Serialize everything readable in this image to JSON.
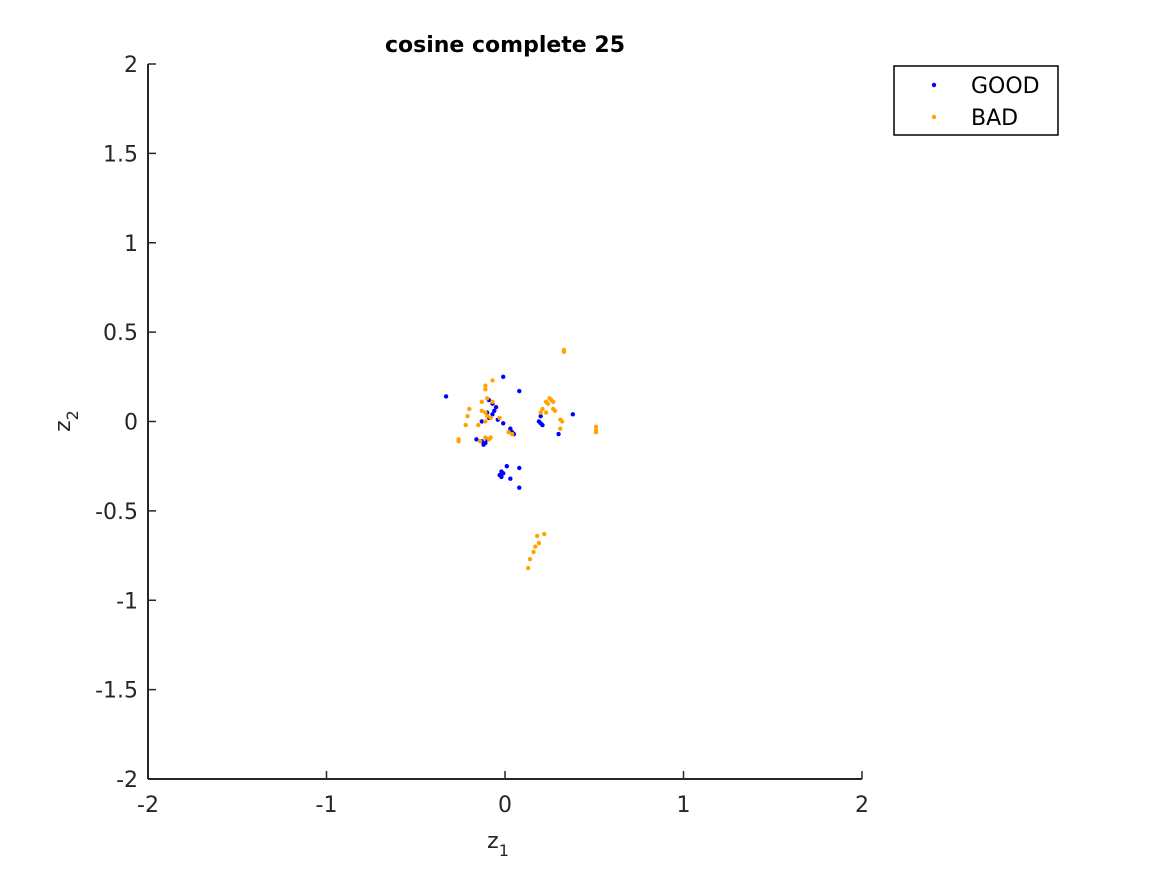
{
  "chart_data": {
    "type": "scatter",
    "title": "cosine complete 25",
    "xlabel": {
      "base": "z",
      "sub": "1"
    },
    "ylabel": {
      "base": "z",
      "sub": "2"
    },
    "xlim": [
      -2,
      2
    ],
    "ylim": [
      -2,
      2
    ],
    "xticks": [
      -2,
      -1,
      0,
      1,
      2
    ],
    "yticks": [
      -2,
      -1.5,
      -1,
      -0.5,
      0,
      0.5,
      1,
      1.5,
      2
    ],
    "grid": false,
    "legend_position": "top-right",
    "series": [
      {
        "name": "GOOD",
        "color": "#0000ff",
        "points": [
          [
            -0.33,
            0.14
          ],
          [
            -0.01,
            0.25
          ],
          [
            0.08,
            0.17
          ],
          [
            -0.09,
            0.12
          ],
          [
            -0.07,
            0.1
          ],
          [
            -0.05,
            0.08
          ],
          [
            -0.06,
            0.06
          ],
          [
            -0.1,
            0.05
          ],
          [
            -0.07,
            0.04
          ],
          [
            -0.09,
            0.02
          ],
          [
            -0.04,
            0.01
          ],
          [
            -0.01,
            -0.01
          ],
          [
            -0.13,
            0.0
          ],
          [
            0.03,
            -0.04
          ],
          [
            0.04,
            -0.06
          ],
          [
            0.05,
            -0.07
          ],
          [
            0.03,
            -0.05
          ],
          [
            0.19,
            0.0
          ],
          [
            0.2,
            -0.01
          ],
          [
            0.21,
            -0.02
          ],
          [
            0.2,
            0.03
          ],
          [
            0.38,
            0.04
          ],
          [
            0.3,
            -0.07
          ],
          [
            -0.16,
            -0.1
          ],
          [
            -0.13,
            -0.11
          ],
          [
            -0.11,
            -0.12
          ],
          [
            -0.12,
            -0.13
          ],
          [
            -0.1,
            -0.1
          ],
          [
            0.01,
            -0.25
          ],
          [
            0.08,
            -0.26
          ],
          [
            -0.02,
            -0.28
          ],
          [
            -0.01,
            -0.29
          ],
          [
            -0.03,
            -0.3
          ],
          [
            -0.02,
            -0.31
          ],
          [
            0.03,
            -0.32
          ],
          [
            0.08,
            -0.37
          ]
        ]
      },
      {
        "name": "BAD",
        "color": "#ffa500",
        "points": [
          [
            0.33,
            0.4
          ],
          [
            0.33,
            0.39
          ],
          [
            -0.07,
            0.23
          ],
          [
            -0.11,
            0.2
          ],
          [
            -0.11,
            0.18
          ],
          [
            -0.1,
            0.13
          ],
          [
            -0.13,
            0.11
          ],
          [
            -0.07,
            0.11
          ],
          [
            -0.2,
            0.07
          ],
          [
            -0.13,
            0.06
          ],
          [
            -0.11,
            0.05
          ],
          [
            -0.1,
            0.03
          ],
          [
            -0.03,
            0.02
          ],
          [
            -0.08,
            0.02
          ],
          [
            -0.21,
            0.03
          ],
          [
            -0.22,
            -0.02
          ],
          [
            -0.15,
            -0.02
          ],
          [
            -0.11,
            0.0
          ],
          [
            -0.26,
            -0.1
          ],
          [
            -0.26,
            -0.11
          ],
          [
            -0.14,
            -0.11
          ],
          [
            -0.11,
            -0.09
          ],
          [
            -0.08,
            -0.09
          ],
          [
            -0.09,
            -0.1
          ],
          [
            0.02,
            -0.06
          ],
          [
            0.04,
            -0.07
          ],
          [
            0.25,
            0.13
          ],
          [
            0.26,
            0.12
          ],
          [
            0.27,
            0.11
          ],
          [
            0.23,
            0.11
          ],
          [
            0.24,
            0.1
          ],
          [
            0.21,
            0.07
          ],
          [
            0.27,
            0.07
          ],
          [
            0.2,
            0.05
          ],
          [
            0.23,
            0.05
          ],
          [
            0.28,
            0.06
          ],
          [
            0.31,
            0.01
          ],
          [
            0.32,
            0.0
          ],
          [
            0.31,
            -0.04
          ],
          [
            0.51,
            -0.03
          ],
          [
            0.51,
            -0.05
          ],
          [
            0.51,
            -0.06
          ],
          [
            0.22,
            -0.63
          ],
          [
            0.18,
            -0.64
          ],
          [
            0.19,
            -0.68
          ],
          [
            0.17,
            -0.7
          ],
          [
            0.16,
            -0.73
          ],
          [
            0.14,
            -0.77
          ],
          [
            0.13,
            -0.82
          ]
        ]
      }
    ]
  }
}
